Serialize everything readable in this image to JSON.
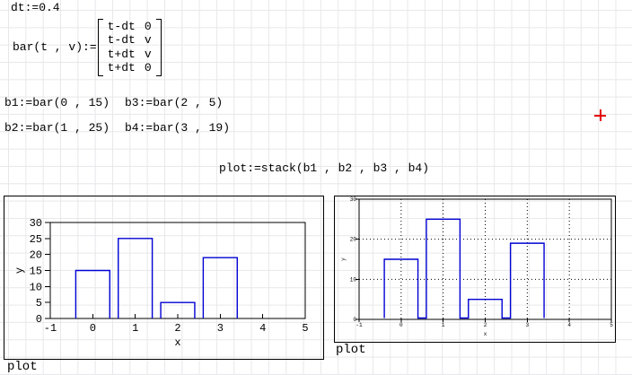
{
  "worksheet": {
    "dt_def": "dt:=0.4",
    "bar_def_lhs": "bar(t , v):=",
    "bar_matrix": [
      [
        "t-dt",
        "0"
      ],
      [
        "t-dt",
        "v"
      ],
      [
        "t+dt",
        "v"
      ],
      [
        "t+dt",
        "0"
      ]
    ],
    "b1_def": "b1:=bar(0 , 15)",
    "b2_def": "b2:=bar(1 , 25)",
    "b3_def": "b3:=bar(2 , 5)",
    "b4_def": "b4:=bar(3 , 19)",
    "plot_def": "plot:=stack(b1 , b2 , b3 , b4)"
  },
  "cursor": {
    "type": "crosshair",
    "color": "#e60000"
  },
  "chart_data": [
    {
      "type": "bar",
      "trace_label": "plot",
      "xlabel": "x",
      "ylabel": "y",
      "xlim": [
        -1,
        5
      ],
      "ylim": [
        0,
        30
      ],
      "xticks": [
        -1,
        0,
        1,
        2,
        3,
        4,
        5
      ],
      "yticks": [
        0,
        5,
        10,
        15,
        20,
        25,
        30
      ],
      "grid": false,
      "categories": [
        0,
        1,
        2,
        3
      ],
      "values": [
        15,
        25,
        5,
        19
      ],
      "bar_halfwidth": 0.4,
      "trace_color": "#0000d4",
      "axis_color": "#000000"
    },
    {
      "type": "bar",
      "trace_label": "plot",
      "xlabel": "x",
      "ylabel": "y",
      "xlim": [
        -1,
        5
      ],
      "ylim": [
        0,
        30
      ],
      "xticks": [
        -1,
        0,
        1,
        2,
        3,
        4,
        5
      ],
      "yticks": [
        0,
        10,
        20,
        30
      ],
      "grid": true,
      "categories": [
        0,
        1,
        2,
        3
      ],
      "values": [
        15,
        25,
        5,
        19
      ],
      "bar_halfwidth": 0.4,
      "trace_color": "#0000d4",
      "axis_color": "#000000"
    }
  ]
}
